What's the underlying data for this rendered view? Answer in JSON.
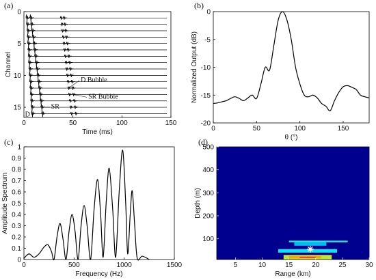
{
  "chart_data": [
    {
      "type": "traces",
      "label": "(a)",
      "x_label": "Time (ms)",
      "y_label": "Channel",
      "xlim": [
        0,
        150
      ],
      "xticks": [
        0,
        50,
        100,
        150
      ],
      "ylim": [
        16.6,
        0
      ],
      "yticks": [
        0,
        5,
        10,
        15
      ],
      "channels": [
        1,
        2,
        3,
        4,
        5,
        6,
        7,
        8,
        9,
        10,
        11,
        12,
        13,
        14,
        15,
        16
      ],
      "color": "#000000",
      "series": [
        {
          "name": "D",
          "values": [
            2,
            2.5,
            3,
            3.3,
            3.6,
            4,
            4.3,
            4.6,
            5,
            5.3,
            5.7,
            6,
            6.4,
            6.8,
            7.2,
            7.6
          ]
        },
        {
          "name": "SR",
          "values": [
            6,
            6.8,
            7.6,
            8.4,
            9.2,
            10,
            10.8,
            11.6,
            12.4,
            13.2,
            14,
            14.8,
            15.6,
            16.4,
            17.2,
            18
          ]
        },
        {
          "name": "D Bubble",
          "values": [
            37,
            37.7,
            38.4,
            39.1,
            39.8,
            40.5,
            41.2,
            41.9,
            42.6,
            43.3,
            44,
            44.7,
            45.4,
            46.1,
            46.8,
            47.5
          ]
        },
        {
          "name": "SR Bubble",
          "values": [
            40,
            40.8,
            41.6,
            42.4,
            43.2,
            44,
            44.8,
            45.6,
            46.4,
            47.2,
            48,
            48.8,
            49.6,
            50.4,
            51.2,
            52
          ]
        }
      ]
    },
    {
      "type": "line",
      "label": "(b)",
      "x_label": "θ (°)",
      "y_label": "Normalized Output (dB)",
      "xlim": [
        0,
        180
      ],
      "xticks": [
        0,
        50,
        100,
        150
      ],
      "ylim": [
        -20,
        0
      ],
      "yticks": [
        -20,
        -15,
        -10,
        -5,
        0
      ],
      "color": "#000000",
      "x": [
        0,
        5,
        10,
        15,
        20,
        25,
        30,
        35,
        40,
        45,
        50,
        55,
        60,
        65,
        70,
        75,
        80,
        85,
        90,
        95,
        100,
        105,
        110,
        115,
        120,
        125,
        130,
        135,
        140,
        145,
        150,
        155,
        160,
        165,
        170,
        175,
        180
      ],
      "values": [
        -16.5,
        -16.4,
        -16.2,
        -16,
        -15.6,
        -15.3,
        -15.6,
        -16,
        -15.5,
        -15,
        -15.6,
        -13,
        -10,
        -10.5,
        -6,
        -1.5,
        0,
        -1.5,
        -5,
        -10,
        -13,
        -15,
        -15.3,
        -15,
        -15.5,
        -16.5,
        -17,
        -17.8,
        -16,
        -14.5,
        -13.5,
        -13.3,
        -13.6,
        -14,
        -15,
        -15.3,
        -15.5
      ]
    },
    {
      "type": "line",
      "label": "(c)",
      "x_label": "Frequency (Hz)",
      "y_label": "Amplitude Spectrum",
      "xlim": [
        0,
        1500
      ],
      "xticks": [
        0,
        500,
        1000,
        1500
      ],
      "ylim": [
        0,
        1
      ],
      "yticks": [
        0,
        0.1,
        0.2,
        0.3,
        0.4,
        0.5,
        0.6,
        0.7,
        0.8,
        0.9,
        1
      ],
      "color": "#000000",
      "x": [
        0,
        50,
        100,
        150,
        200,
        240,
        275,
        300,
        330,
        360,
        390,
        420,
        450,
        480,
        510,
        540,
        570,
        600,
        630,
        665,
        700,
        735,
        765,
        790,
        820,
        850,
        885,
        915,
        950,
        985,
        1015,
        1035,
        1060,
        1080,
        1105,
        1130,
        1180,
        1250
      ],
      "values": [
        0.01,
        0.05,
        0.02,
        0.05,
        0.11,
        0.13,
        0.07,
        0,
        0.2,
        0.32,
        0.18,
        0,
        0.25,
        0.4,
        0.25,
        0,
        0.3,
        0.48,
        0.3,
        0,
        0.45,
        0.71,
        0.4,
        0.02,
        0.5,
        0.81,
        0.45,
        0.02,
        0.6,
        0.97,
        0.5,
        0.05,
        0.4,
        0.61,
        0.3,
        0.01,
        0.03,
        0
      ]
    },
    {
      "type": "heatmap",
      "label": "(d)",
      "x_label": "Range (km)",
      "y_label": "Depth (m)",
      "xlim": [
        1.5,
        30
      ],
      "xticks": [
        5,
        10,
        15,
        20,
        25,
        30
      ],
      "ylim": [
        10,
        500
      ],
      "yticks": [
        100,
        200,
        300,
        400,
        500
      ],
      "color": "#00008f",
      "cells": [
        {
          "x": [
            15,
            26
          ],
          "y": [
            85,
            92
          ],
          "value": 0.42
        },
        {
          "x": [
            16,
            22
          ],
          "y": [
            70,
            85
          ],
          "value": 0.33
        },
        {
          "x": [
            13,
            24
          ],
          "y": [
            40,
            55
          ],
          "value": 0.38
        },
        {
          "x": [
            14,
            23
          ],
          "y": [
            10,
            30
          ],
          "value": 0.58
        },
        {
          "x": [
            15,
            21
          ],
          "y": [
            15,
            25
          ],
          "value": 0.72
        },
        {
          "x": [
            17,
            20
          ],
          "y": [
            18,
            22
          ],
          "value": 0.9
        }
      ],
      "marker": {
        "x": 19,
        "y": 55,
        "color": "#ffffff"
      }
    }
  ]
}
